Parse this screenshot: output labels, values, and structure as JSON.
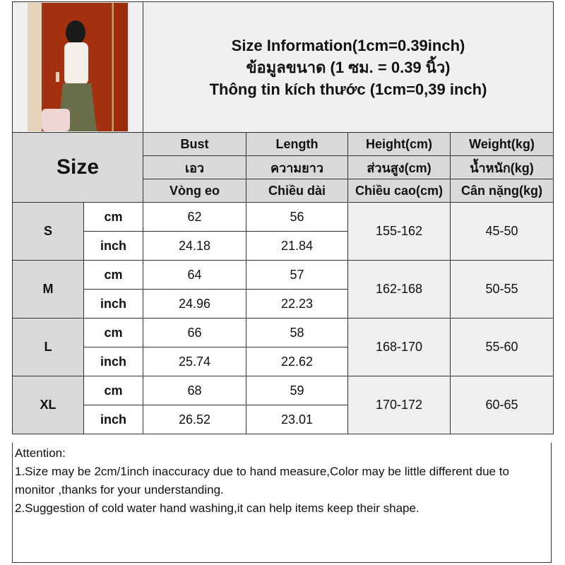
{
  "title": {
    "line1": "Size Information(1cm=0.39inch)",
    "line2": "ข้อมูลขนาด (1 ซม. = 0.39 นิ้ว)",
    "line3": "Thông tin kích thước (1cm=0,39 inch)"
  },
  "size_header": "Size",
  "columns": [
    {
      "en": "Bust",
      "th": "เอว",
      "vi": "Vòng eo"
    },
    {
      "en": "Length",
      "th": "ความยาว",
      "vi": "Chiều dài"
    },
    {
      "en": "Height(cm)",
      "th": "ส่วนสูง(cm)",
      "vi": "Chiều cao(cm)"
    },
    {
      "en": "Weight(kg)",
      "th": "น้ำหนัก(kg)",
      "vi": "Cân nặng(kg)"
    }
  ],
  "units": {
    "cm": "cm",
    "inch": "inch"
  },
  "rows": [
    {
      "size": "S",
      "cm": [
        "62",
        "56"
      ],
      "inch": [
        "24.18",
        "21.84"
      ],
      "height": "155-162",
      "weight": "45-50"
    },
    {
      "size": "M",
      "cm": [
        "64",
        "57"
      ],
      "inch": [
        "24.96",
        "22.23"
      ],
      "height": "162-168",
      "weight": "50-55"
    },
    {
      "size": "L",
      "cm": [
        "66",
        "58"
      ],
      "inch": [
        "25.74",
        "22.62"
      ],
      "height": "168-170",
      "weight": "55-60"
    },
    {
      "size": "XL",
      "cm": [
        "68",
        "59"
      ],
      "inch": [
        "26.52",
        "23.01"
      ],
      "height": "170-172",
      "weight": "60-65"
    }
  ],
  "attention": {
    "heading": "Attention:",
    "note1": "1.Size may be 2cm/1inch inaccuracy due to hand measure,Color may be little different due to monitor ,thanks for your understanding.",
    "note2": "2.Suggestion of cold water hand washing,it can help items keep their shape."
  }
}
